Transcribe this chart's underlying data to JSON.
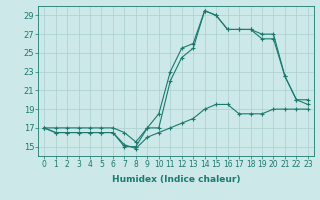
{
  "xlabel": "Humidex (Indice chaleur)",
  "x": [
    0,
    1,
    2,
    3,
    4,
    5,
    6,
    7,
    8,
    9,
    10,
    11,
    12,
    13,
    14,
    15,
    16,
    17,
    18,
    19,
    20,
    21,
    22,
    23
  ],
  "y_main": [
    17.0,
    16.5,
    16.5,
    16.5,
    16.5,
    16.5,
    16.5,
    15.0,
    15.0,
    17.0,
    17.0,
    22.0,
    24.5,
    25.5,
    29.5,
    29.0,
    27.5,
    27.5,
    27.5,
    26.5,
    26.5,
    22.5,
    20.0,
    19.5
  ],
  "y_min": [
    17.0,
    16.5,
    16.5,
    16.5,
    16.5,
    16.5,
    16.5,
    15.2,
    14.8,
    16.0,
    16.5,
    17.0,
    17.5,
    18.0,
    19.0,
    19.5,
    19.5,
    18.5,
    18.5,
    18.5,
    19.0,
    19.0,
    19.0,
    19.0
  ],
  "y_max": [
    17.0,
    17.0,
    17.0,
    17.0,
    17.0,
    17.0,
    17.0,
    16.5,
    15.5,
    17.0,
    18.5,
    23.0,
    25.5,
    26.0,
    29.5,
    29.0,
    27.5,
    27.5,
    27.5,
    27.0,
    27.0,
    22.5,
    20.0,
    20.0
  ],
  "line_color": "#1a7a6e",
  "bg_color": "#cce8e8",
  "grid_color": "#aacfcf",
  "ylim": [
    14,
    30
  ],
  "yticks": [
    15,
    17,
    19,
    21,
    23,
    25,
    27,
    29
  ],
  "xticks": [
    0,
    1,
    2,
    3,
    4,
    5,
    6,
    7,
    8,
    9,
    10,
    11,
    12,
    13,
    14,
    15,
    16,
    17,
    18,
    19,
    20,
    21,
    22,
    23
  ],
  "marker": "+",
  "markersize": 3.5,
  "linewidth": 0.8
}
